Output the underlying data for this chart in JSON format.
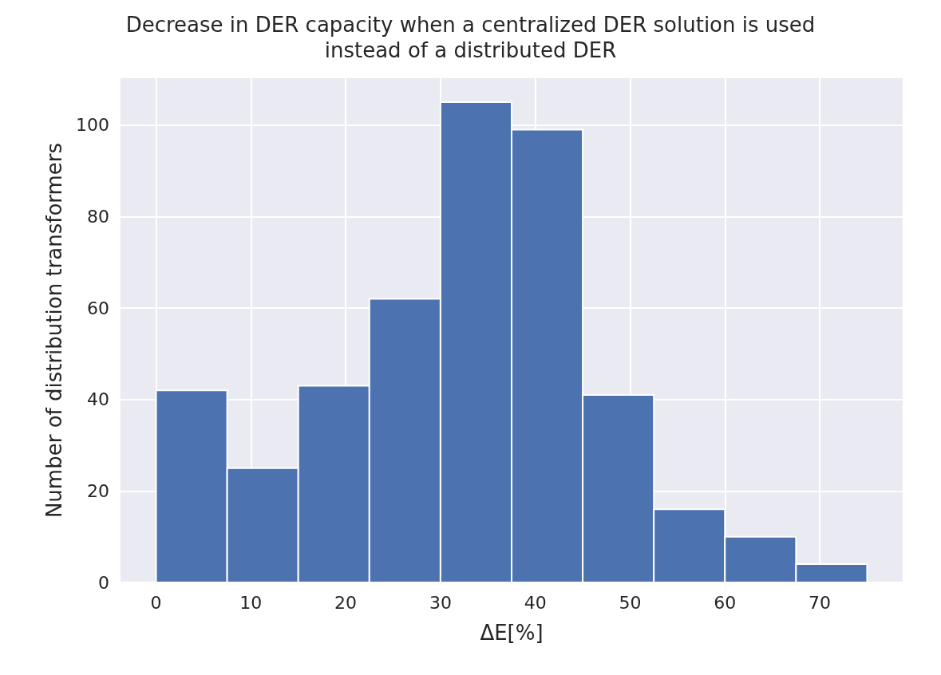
{
  "chart_data": {
    "type": "histogram",
    "title": "Decrease in DER capacity when a centralized DER solution is used\ninstead of a distributed DER",
    "xlabel": "ΔE[%]",
    "ylabel": "Number of distribution transformers",
    "bins": [
      0,
      7.5,
      15,
      22.5,
      30,
      37.5,
      45,
      52.5,
      60,
      67.5,
      75
    ],
    "values": [
      42,
      25,
      43,
      62,
      105,
      99,
      41,
      16,
      10,
      4
    ],
    "color": "#4c72b0",
    "xlim": [
      -3.75,
      78.75
    ],
    "xticks": [
      0,
      10,
      20,
      30,
      40,
      50,
      60,
      70
    ],
    "ylim": [
      0,
      110.25
    ],
    "yticks": [
      0,
      20,
      40,
      60,
      80,
      100
    ],
    "grid": true
  }
}
